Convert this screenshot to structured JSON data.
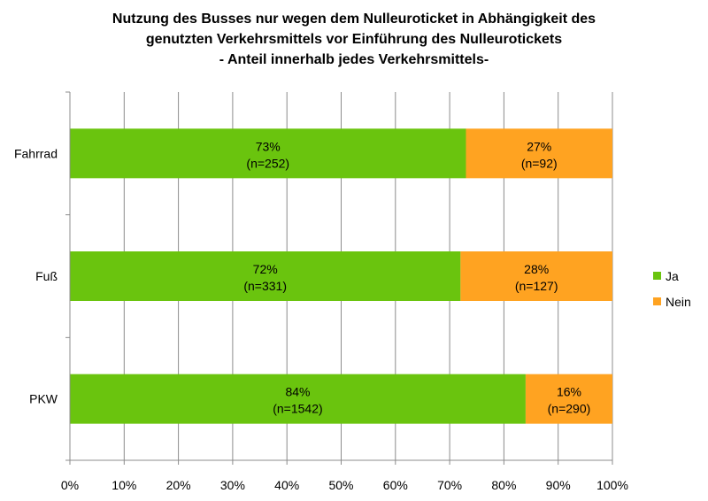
{
  "chart_data": {
    "type": "bar",
    "orientation": "horizontal",
    "stacked": true,
    "title_lines": [
      "Nutzung des Busses nur wegen dem Nulleuroticket in Abhängigkeit des",
      "genutzten Verkehrsmittels vor Einführung des Nulleurotickets",
      "- Anteil innerhalb jedes Verkehrsmittels-"
    ],
    "categories": [
      "Fahrrad",
      "Fuß",
      "PKW"
    ],
    "series": [
      {
        "name": "Ja",
        "color": "#6ac40e",
        "values": [
          73,
          72,
          84
        ],
        "labels": [
          "73%",
          "72%",
          "84%"
        ],
        "counts": [
          "(n=252)",
          "(n=331)",
          "(n=1542)"
        ]
      },
      {
        "name": "Nein",
        "color": "#ffa321",
        "values": [
          27,
          28,
          16
        ],
        "labels": [
          "27%",
          "28%",
          "16%"
        ],
        "counts": [
          "(n=92)",
          "(n=127)",
          "(n=290)"
        ]
      }
    ],
    "xlim": [
      0,
      100
    ],
    "xticks": [
      "0%",
      "10%",
      "20%",
      "30%",
      "40%",
      "50%",
      "60%",
      "70%",
      "80%",
      "90%",
      "100%"
    ],
    "grid": true,
    "legend_position": "right"
  }
}
